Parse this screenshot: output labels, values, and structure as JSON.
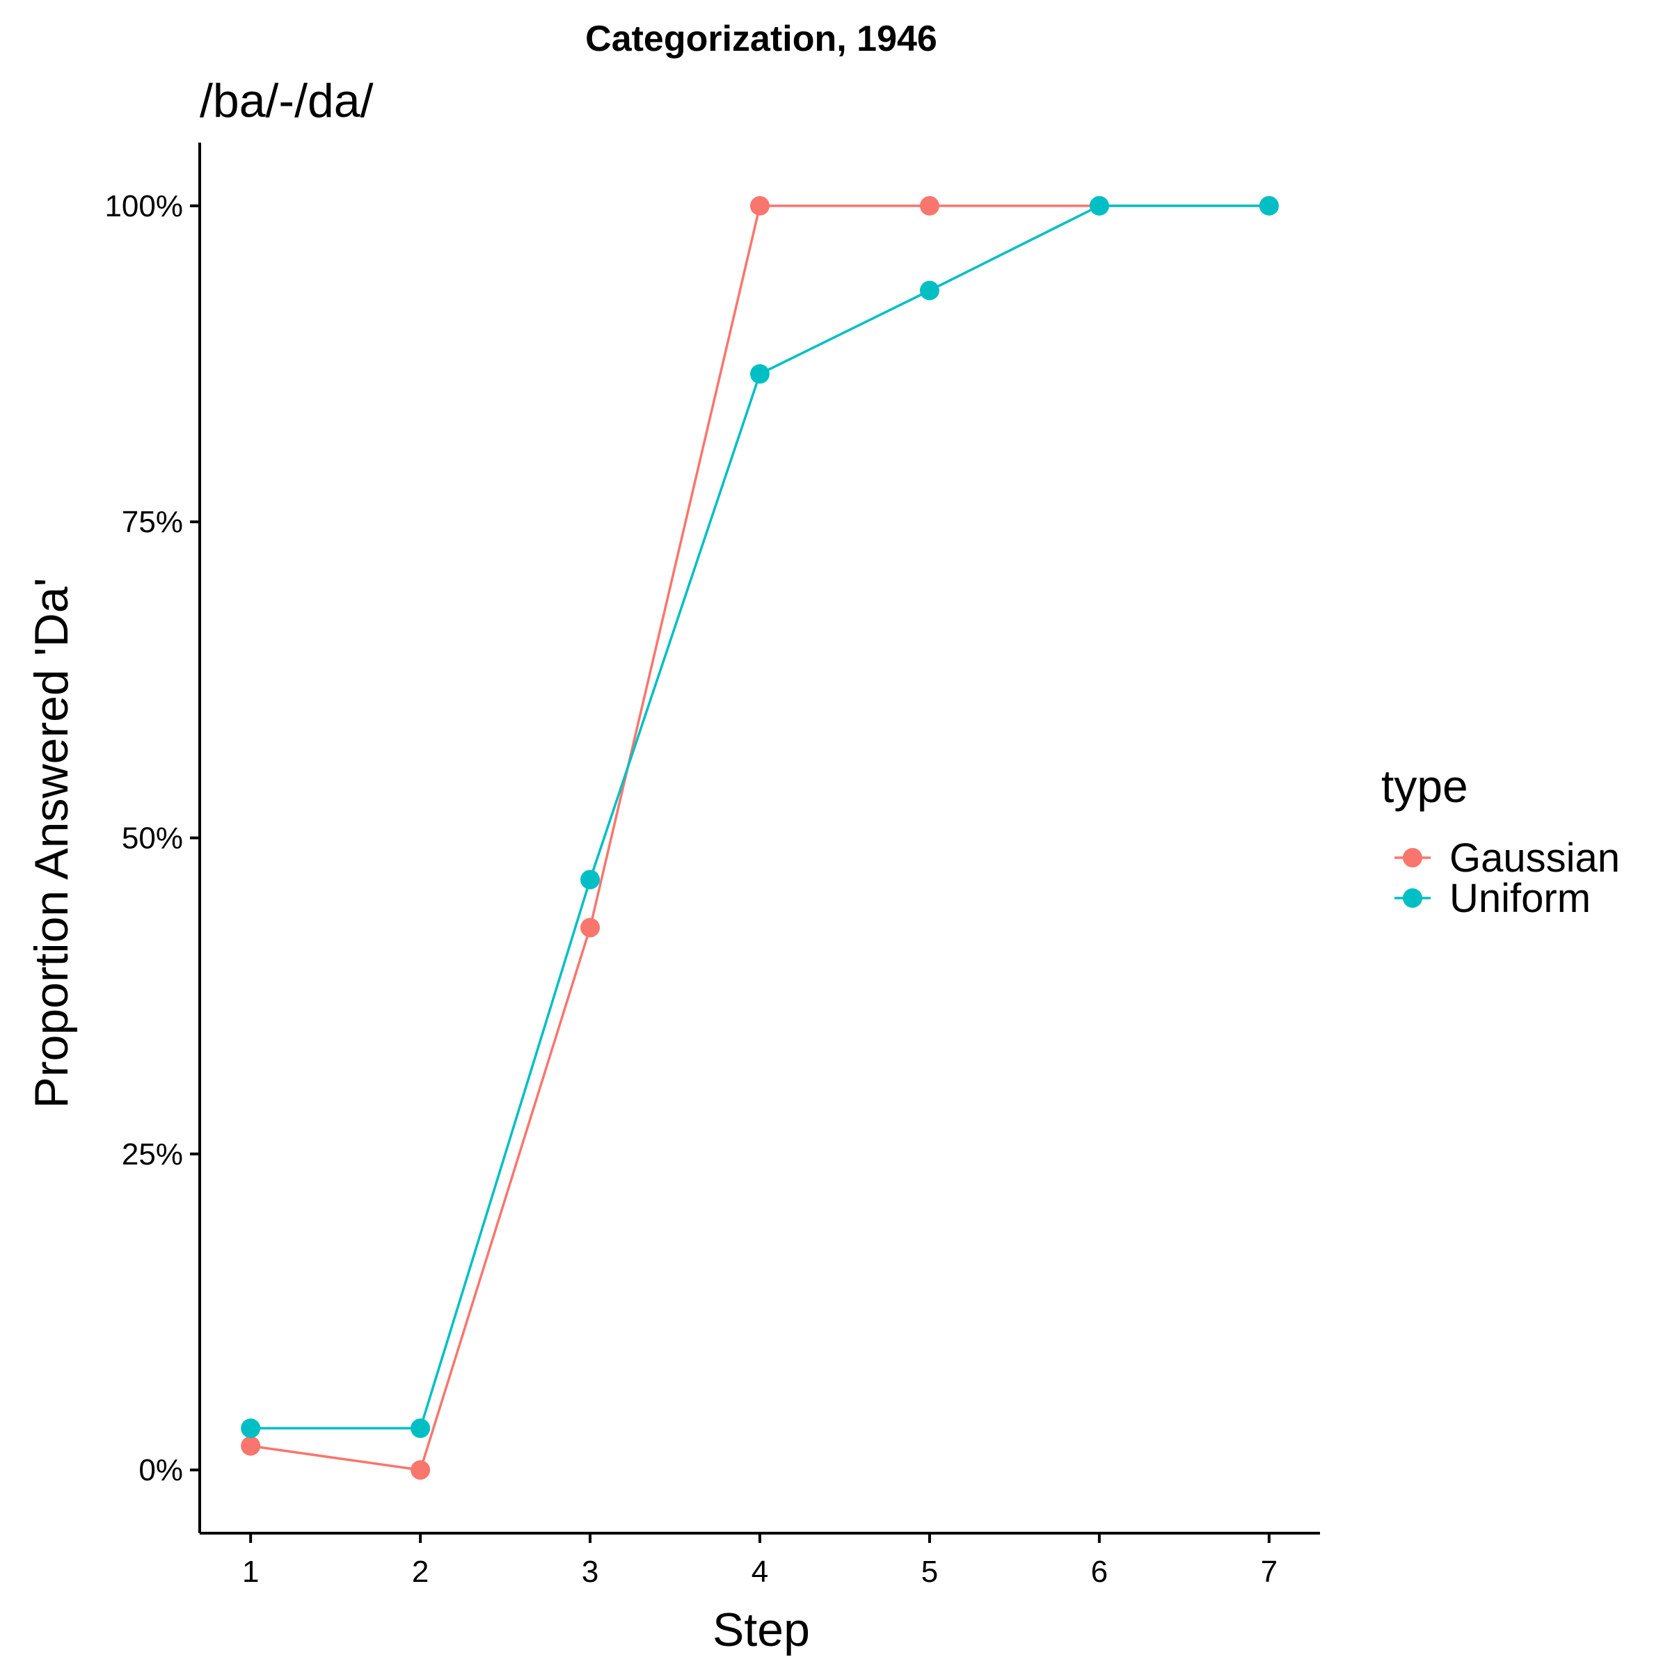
{
  "chart_data": {
    "type": "line",
    "title": "Categorization, 1946",
    "subtitle": "/ba/-/da/",
    "xlabel": "Step",
    "ylabel": "Proportion Answered 'Da'",
    "x": [
      1,
      2,
      3,
      4,
      5,
      6,
      7
    ],
    "x_tick_labels": [
      "1",
      "2",
      "3",
      "4",
      "5",
      "6",
      "7"
    ],
    "xlim": [
      0.7,
      7.3
    ],
    "ylim": [
      -0.05,
      1.05
    ],
    "y_ticks": [
      0,
      0.25,
      0.5,
      0.75,
      1.0
    ],
    "y_tick_labels": [
      "0%",
      "25%",
      "50%",
      "75%",
      "100%"
    ],
    "grid": false,
    "legend": {
      "title": "type",
      "position": "right",
      "entries": [
        "Gaussian",
        "Uniform"
      ]
    },
    "series": [
      {
        "name": "Gaussian",
        "color": "#F8766D",
        "values": [
          0.019,
          0.0,
          0.429,
          1.0,
          1.0,
          1.0,
          1.0
        ]
      },
      {
        "name": "Uniform",
        "color": "#00BFC4",
        "values": [
          0.033,
          0.033,
          0.467,
          0.867,
          0.933,
          1.0,
          1.0
        ]
      }
    ]
  }
}
